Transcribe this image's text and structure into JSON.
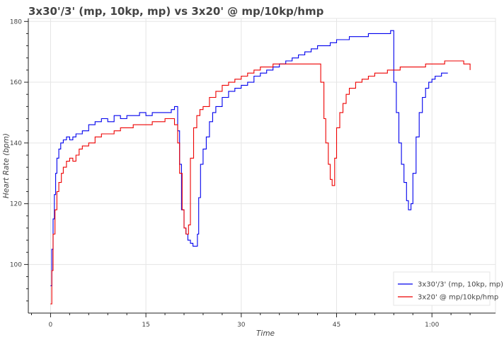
{
  "chart_data": {
    "type": "line",
    "title": "3x30'/3' (mp, 10kp, mp) vs 3x20' @ mp/10kp/hmp",
    "xlabel": "Time",
    "ylabel": "Heart Rate (bpm)",
    "xlim": [
      -3.5,
      70
    ],
    "ylim": [
      84,
      181
    ],
    "x_unit": "minutes",
    "x_ticks": [
      {
        "value": 0,
        "label": "0"
      },
      {
        "value": 15,
        "label": "15"
      },
      {
        "value": 30,
        "label": "30"
      },
      {
        "value": 45,
        "label": "45"
      },
      {
        "value": 60,
        "label": "1:00"
      }
    ],
    "y_ticks": [
      {
        "value": 100,
        "label": "100"
      },
      {
        "value": 120,
        "label": "120"
      },
      {
        "value": 140,
        "label": "140"
      },
      {
        "value": 160,
        "label": "160"
      },
      {
        "value": 180,
        "label": "180"
      }
    ],
    "grid": true,
    "legend_position": "bottom-right",
    "series": [
      {
        "name": "3x30'/3' (mp, 10kp, mp)",
        "color": "#0000ee",
        "x": [
          0,
          0.2,
          0.4,
          0.6,
          0.8,
          1,
          1.3,
          1.6,
          2,
          2.5,
          3,
          3.5,
          4,
          5,
          6,
          7,
          8,
          9,
          10,
          11,
          12,
          13,
          14,
          15,
          16,
          17,
          18,
          19,
          19.5,
          20,
          20.3,
          20.6,
          21,
          21.3,
          21.6,
          22,
          22.4,
          22.8,
          23.1,
          23.3,
          23.6,
          24,
          24.5,
          25,
          25.5,
          26,
          27,
          28,
          29,
          30,
          31,
          32,
          33,
          34,
          35,
          36,
          37,
          38,
          39,
          40,
          41,
          42,
          43,
          44,
          45,
          46,
          47,
          48,
          49,
          50,
          51,
          52,
          53,
          53.5,
          54,
          54.4,
          54.8,
          55.2,
          55.6,
          56,
          56.3,
          56.7,
          57,
          57.5,
          58,
          58.5,
          59,
          59.5,
          60,
          60.5,
          61,
          61.5,
          62,
          62.5
        ],
        "y": [
          93,
          105,
          115,
          123,
          130,
          135,
          138,
          140,
          141,
          142,
          141,
          142,
          143,
          144,
          146,
          147,
          148,
          147,
          149,
          148,
          149,
          149,
          150,
          149,
          150,
          150,
          150,
          151,
          152,
          144,
          133,
          118,
          112,
          110,
          108,
          107,
          106,
          106,
          110,
          122,
          133,
          138,
          142,
          147,
          150,
          152,
          155,
          157,
          158,
          159,
          160,
          162,
          163,
          164,
          165,
          166,
          167,
          168,
          169,
          170,
          171,
          172,
          172,
          173,
          174,
          174,
          175,
          175,
          175,
          176,
          176,
          176,
          176,
          177,
          160,
          150,
          140,
          133,
          127,
          121,
          118,
          120,
          130,
          142,
          150,
          155,
          158,
          160,
          161,
          162,
          162,
          163,
          163,
          163
        ]
      },
      {
        "name": "3x20' @ mp/10kp/hmp",
        "color": "#ee0000",
        "x": [
          0,
          0.2,
          0.4,
          0.7,
          1,
          1.3,
          1.7,
          2,
          2.5,
          3,
          3.5,
          4,
          4.5,
          5,
          6,
          7,
          8,
          9,
          10,
          11,
          12,
          13,
          14,
          15,
          16,
          17,
          18,
          19,
          19.5,
          20,
          20.3,
          20.7,
          21,
          21.3,
          21.7,
          22,
          22.5,
          23,
          23.5,
          24,
          25,
          26,
          27,
          28,
          29,
          30,
          31,
          32,
          33,
          34,
          35,
          36,
          37,
          38,
          39,
          40,
          41,
          42,
          42.5,
          43,
          43.3,
          43.7,
          44,
          44.3,
          44.7,
          45,
          45.5,
          46,
          46.5,
          47,
          48,
          49,
          50,
          51,
          52,
          53,
          54,
          55,
          56,
          57,
          58,
          59,
          60,
          61,
          62,
          63,
          64,
          65,
          66
        ],
        "y": [
          87,
          98,
          110,
          118,
          124,
          127,
          130,
          132,
          134,
          135,
          134,
          136,
          138,
          139,
          140,
          142,
          143,
          143,
          144,
          145,
          145,
          146,
          146,
          146,
          147,
          147,
          148,
          148,
          146,
          140,
          130,
          118,
          112,
          110,
          113,
          135,
          145,
          149,
          151,
          152,
          155,
          157,
          159,
          160,
          161,
          162,
          163,
          164,
          165,
          165,
          166,
          166,
          166,
          166,
          166,
          166,
          166,
          166,
          160,
          148,
          140,
          133,
          128,
          126,
          135,
          145,
          150,
          153,
          156,
          158,
          160,
          161,
          162,
          163,
          163,
          164,
          164,
          165,
          165,
          165,
          165,
          166,
          166,
          166,
          167,
          167,
          167,
          166,
          164
        ]
      }
    ]
  }
}
